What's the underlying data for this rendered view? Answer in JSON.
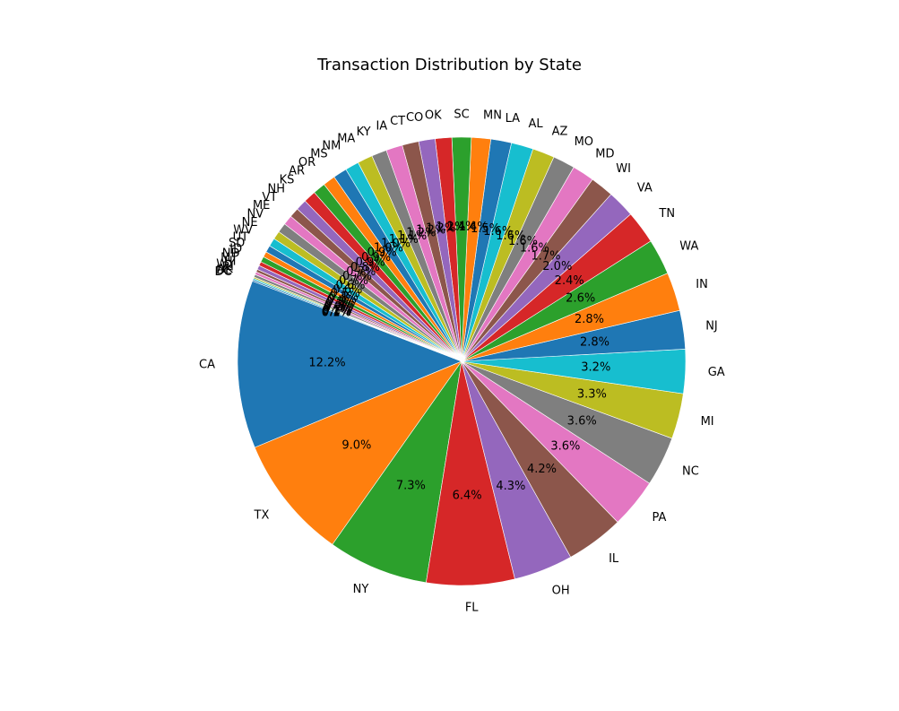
{
  "chart_data": {
    "type": "pie",
    "title": "Transaction Distribution by State",
    "start_angle_deg": 159,
    "direction": "counterclockwise",
    "slices": [
      {
        "label": "CA",
        "value": 12.2,
        "pct_text": "12.2%",
        "color": "#1f77b4"
      },
      {
        "label": "TX",
        "value": 9.0,
        "pct_text": "9.0%",
        "color": "#ff7f0e"
      },
      {
        "label": "NY",
        "value": 7.3,
        "pct_text": "7.3%",
        "color": "#2ca02c"
      },
      {
        "label": "FL",
        "value": 6.4,
        "pct_text": "6.4%",
        "color": "#d62728"
      },
      {
        "label": "OH",
        "value": 4.3,
        "pct_text": "4.3%",
        "color": "#9467bd"
      },
      {
        "label": "IL",
        "value": 4.2,
        "pct_text": "4.2%",
        "color": "#8c564b"
      },
      {
        "label": "PA",
        "value": 3.6,
        "pct_text": "3.6%",
        "color": "#e377c2"
      },
      {
        "label": "NC",
        "value": 3.6,
        "pct_text": "3.6%",
        "color": "#7f7f7f"
      },
      {
        "label": "MI",
        "value": 3.3,
        "pct_text": "3.3%",
        "color": "#bcbd22"
      },
      {
        "label": "GA",
        "value": 3.2,
        "pct_text": "3.2%",
        "color": "#17becf"
      },
      {
        "label": "NJ",
        "value": 2.8,
        "pct_text": "2.8%",
        "color": "#1f77b4"
      },
      {
        "label": "IN",
        "value": 2.8,
        "pct_text": "2.8%",
        "color": "#ff7f0e"
      },
      {
        "label": "WA",
        "value": 2.6,
        "pct_text": "2.6%",
        "color": "#2ca02c"
      },
      {
        "label": "TN",
        "value": 2.4,
        "pct_text": "2.4%",
        "color": "#d62728"
      },
      {
        "label": "VA",
        "value": 2.0,
        "pct_text": "2.0%",
        "color": "#9467bd"
      },
      {
        "label": "WI",
        "value": 1.7,
        "pct_text": "1.7%",
        "color": "#8c564b"
      },
      {
        "label": "MD",
        "value": 1.6,
        "pct_text": "1.6%",
        "color": "#e377c2"
      },
      {
        "label": "MO",
        "value": 1.6,
        "pct_text": "1.6%",
        "color": "#7f7f7f"
      },
      {
        "label": "AZ",
        "value": 1.6,
        "pct_text": "1.6%",
        "color": "#bcbd22"
      },
      {
        "label": "AL",
        "value": 1.6,
        "pct_text": "1.6%",
        "color": "#17becf"
      },
      {
        "label": "LA",
        "value": 1.5,
        "pct_text": "1.5%",
        "color": "#1f77b4"
      },
      {
        "label": "MN",
        "value": 1.4,
        "pct_text": "1.4%",
        "color": "#ff7f0e"
      },
      {
        "label": "SC",
        "value": 1.4,
        "pct_text": "1.4%",
        "color": "#2ca02c"
      },
      {
        "label": "OK",
        "value": 1.2,
        "pct_text": "1.2%",
        "color": "#d62728"
      },
      {
        "label": "CO",
        "value": 1.2,
        "pct_text": "1.2%",
        "color": "#9467bd"
      },
      {
        "label": "CT",
        "value": 1.2,
        "pct_text": "1.2%",
        "color": "#8c564b"
      },
      {
        "label": "IA",
        "value": 1.2,
        "pct_text": "1.2%",
        "color": "#e377c2"
      },
      {
        "label": "KY",
        "value": 1.1,
        "pct_text": "1.1%",
        "color": "#7f7f7f"
      },
      {
        "label": "MA",
        "value": 1.1,
        "pct_text": "1.1%",
        "color": "#bcbd22"
      },
      {
        "label": "NM",
        "value": 1.0,
        "pct_text": "1.0%",
        "color": "#17becf"
      },
      {
        "label": "MS",
        "value": 1.0,
        "pct_text": "1.0%",
        "color": "#1f77b4"
      },
      {
        "label": "OR",
        "value": 0.9,
        "pct_text": "0.9%",
        "color": "#ff7f0e"
      },
      {
        "label": "AR",
        "value": 0.9,
        "pct_text": "0.9%",
        "color": "#2ca02c"
      },
      {
        "label": "KS",
        "value": 0.9,
        "pct_text": "0.9%",
        "color": "#d62728"
      },
      {
        "label": "NH",
        "value": 0.8,
        "pct_text": "0.8%",
        "color": "#9467bd"
      },
      {
        "label": "VT",
        "value": 0.7,
        "pct_text": "0.7%",
        "color": "#8c564b"
      },
      {
        "label": "ME",
        "value": 0.7,
        "pct_text": "0.7%",
        "color": "#e377c2"
      },
      {
        "label": "NV",
        "value": 0.7,
        "pct_text": "0.7%",
        "color": "#7f7f7f"
      },
      {
        "label": "NE",
        "value": 0.6,
        "pct_text": "0.6%",
        "color": "#bcbd22"
      },
      {
        "label": "WV",
        "value": 0.6,
        "pct_text": "0.6%",
        "color": "#17becf"
      },
      {
        "label": "UT",
        "value": 0.5,
        "pct_text": "0.5%",
        "color": "#1f77b4"
      },
      {
        "label": "SD",
        "value": 0.4,
        "pct_text": "0.4%",
        "color": "#ff7f0e"
      },
      {
        "label": "ID",
        "value": 0.4,
        "pct_text": "0.4%",
        "color": "#2ca02c"
      },
      {
        "label": "ND",
        "value": 0.3,
        "pct_text": "0.3%",
        "color": "#d62728"
      },
      {
        "label": "MT",
        "value": 0.3,
        "pct_text": "0.3%",
        "color": "#9467bd"
      },
      {
        "label": "HI",
        "value": 0.2,
        "pct_text": "0.2%",
        "color": "#8c564b"
      },
      {
        "label": "WY",
        "value": 0.2,
        "pct_text": "0.2%",
        "color": "#e377c2"
      },
      {
        "label": "RI",
        "value": 0.2,
        "pct_text": "0.2%",
        "color": "#7f7f7f"
      },
      {
        "label": "AK",
        "value": 0.1,
        "pct_text": "0.1%",
        "color": "#bcbd22"
      },
      {
        "label": "DE",
        "value": 0.1,
        "pct_text": "0.1%",
        "color": "#17becf"
      },
      {
        "label": "DC",
        "value": 0.1,
        "pct_text": "0.1%",
        "color": "#1f77b4"
      }
    ]
  }
}
